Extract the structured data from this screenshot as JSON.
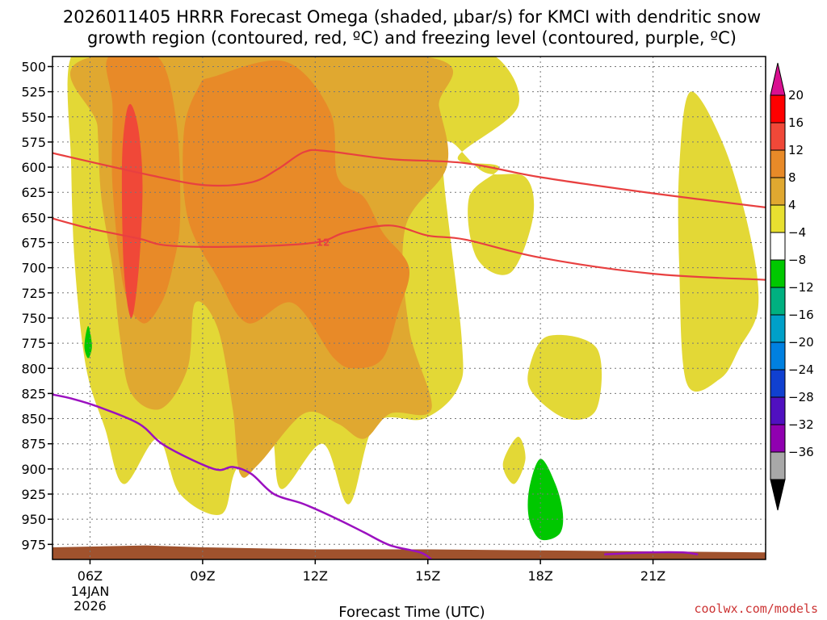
{
  "chart_data": {
    "type": "heatmap",
    "title_line1": "2026011405 HRRR Forecast Omega (shaded, μbar/s) for KMCI with dendritic snow",
    "title_line2": "growth region (contoured, red, ºC) and freezing level (contoured, purple, ºC)",
    "xlabel": "Forecast Time (UTC)",
    "credit": "coolwx.com/models",
    "x_range_hours": [
      5,
      24
    ],
    "y_range_mb": [
      490,
      990
    ],
    "y_ticks": [
      "500",
      "525",
      "550",
      "575",
      "600",
      "625",
      "650",
      "675",
      "700",
      "725",
      "750",
      "775",
      "800",
      "825",
      "850",
      "875",
      "900",
      "925",
      "950",
      "975"
    ],
    "x_ticks": [
      {
        "label": "06Z",
        "hour": 6,
        "sub": [
          "14JAN",
          "2026"
        ]
      },
      {
        "label": "09Z",
        "hour": 9,
        "sub": []
      },
      {
        "label": "12Z",
        "hour": 12,
        "sub": []
      },
      {
        "label": "15Z",
        "hour": 15,
        "sub": []
      },
      {
        "label": "18Z",
        "hour": 18,
        "sub": []
      },
      {
        "label": "21Z",
        "hour": 21,
        "sub": []
      }
    ],
    "colorbar": {
      "labels": [
        "20",
        "16",
        "12",
        "8",
        "4",
        "−4",
        "−8",
        "−12",
        "−16",
        "−20",
        "−24",
        "−28",
        "−32",
        "−36"
      ],
      "colors": [
        "#e8e030",
        "#e0a830",
        "#e88a28",
        "#f04838",
        "#ff0000",
        "#d91090",
        "#ffffff",
        "#00c800",
        "#00b080",
        "#00a0c8",
        "#0080e0",
        "#1040d0",
        "#5010c0",
        "#9000b0",
        "#a8a8a8",
        "#000000"
      ]
    },
    "omega_regions": [
      {
        "name": "omega-4-8-main",
        "color": "#e3d836",
        "points": [
          [
            5.5,
            490
          ],
          [
            6.8,
            490
          ],
          [
            8.2,
            490
          ],
          [
            13.9,
            490
          ],
          [
            15.4,
            490
          ],
          [
            16.8,
            490
          ],
          [
            17.4,
            540
          ],
          [
            15.8,
            590
          ],
          [
            16.9,
            600
          ],
          [
            16.1,
            630
          ],
          [
            16.3,
            690
          ],
          [
            17.2,
            705
          ],
          [
            17.8,
            650
          ],
          [
            17.6,
            610
          ],
          [
            16.5,
            605
          ],
          [
            15.6,
            575
          ],
          [
            15.4,
            600
          ],
          [
            15.9,
            770
          ],
          [
            15.8,
            820
          ],
          [
            14.9,
            850
          ],
          [
            13.6,
            855
          ],
          [
            12.9,
            935
          ],
          [
            12.2,
            875
          ],
          [
            11.1,
            920
          ],
          [
            10.8,
            865
          ],
          [
            9.9,
            900
          ],
          [
            9.5,
            945
          ],
          [
            8.4,
            925
          ],
          [
            7.8,
            870
          ],
          [
            6.9,
            915
          ],
          [
            6.4,
            860
          ],
          [
            5.9,
            800
          ],
          [
            5.6,
            700
          ],
          [
            5.5,
            600
          ]
        ]
      },
      {
        "name": "omega-4-8-east",
        "color": "#e3d836",
        "points": [
          [
            22.0,
            525
          ],
          [
            22.9,
            580
          ],
          [
            23.6,
            670
          ],
          [
            23.8,
            740
          ],
          [
            23.3,
            780
          ],
          [
            22.8,
            810
          ],
          [
            21.9,
            815
          ],
          [
            21.7,
            700
          ],
          [
            21.7,
            600
          ]
        ]
      },
      {
        "name": "omega-4-8-small-a",
        "color": "#e3d836",
        "points": [
          [
            17.4,
            868
          ],
          [
            17.6,
            890
          ],
          [
            17.3,
            915
          ],
          [
            17.0,
            895
          ]
        ]
      },
      {
        "name": "omega-4-8-small-b",
        "color": "#e3d836",
        "points": [
          [
            18.2,
            768
          ],
          [
            19.5,
            780
          ],
          [
            19.5,
            840
          ],
          [
            18.7,
            850
          ],
          [
            17.8,
            825
          ],
          [
            17.7,
            800
          ]
        ]
      },
      {
        "name": "omega-8-12",
        "color": "#e0a830",
        "points": [
          [
            6.1,
            490
          ],
          [
            14.9,
            490
          ],
          [
            15.3,
            540
          ],
          [
            15.5,
            600
          ],
          [
            14.4,
            660
          ],
          [
            14.5,
            760
          ],
          [
            15.1,
            840
          ],
          [
            14.0,
            845
          ],
          [
            13.3,
            870
          ],
          [
            12.6,
            855
          ],
          [
            11.7,
            845
          ],
          [
            10.5,
            895
          ],
          [
            10.0,
            905
          ],
          [
            9.8,
            840
          ],
          [
            9.4,
            760
          ],
          [
            8.8,
            735
          ],
          [
            8.6,
            800
          ],
          [
            7.9,
            840
          ],
          [
            7.1,
            825
          ],
          [
            6.8,
            770
          ],
          [
            6.6,
            700
          ],
          [
            6.3,
            630
          ],
          [
            6.2,
            560
          ]
        ]
      },
      {
        "name": "omega-12-16-a",
        "color": "#e88a28",
        "points": [
          [
            6.5,
            490
          ],
          [
            7.8,
            490
          ],
          [
            8.3,
            555
          ],
          [
            8.4,
            650
          ],
          [
            8.2,
            700
          ],
          [
            7.9,
            735
          ],
          [
            7.4,
            755
          ],
          [
            6.9,
            720
          ],
          [
            6.6,
            620
          ],
          [
            6.6,
            540
          ]
        ]
      },
      {
        "name": "omega-12-16-b",
        "color": "#e88a28",
        "points": [
          [
            9.3,
            510
          ],
          [
            11.2,
            495
          ],
          [
            12.4,
            545
          ],
          [
            12.6,
            610
          ],
          [
            13.3,
            630
          ],
          [
            13.8,
            665
          ],
          [
            14.5,
            700
          ],
          [
            14.2,
            745
          ],
          [
            13.8,
            790
          ],
          [
            13.1,
            800
          ],
          [
            12.5,
            790
          ],
          [
            11.4,
            735
          ],
          [
            10.2,
            755
          ],
          [
            9.4,
            710
          ],
          [
            8.6,
            650
          ],
          [
            8.5,
            565
          ],
          [
            8.9,
            520
          ]
        ]
      },
      {
        "name": "omega-16-20",
        "color": "#f04838",
        "points": [
          [
            7.1,
            538
          ],
          [
            7.3,
            565
          ],
          [
            7.4,
            620
          ],
          [
            7.3,
            700
          ],
          [
            7.1,
            750
          ],
          [
            6.9,
            700
          ],
          [
            6.85,
            600
          ],
          [
            6.95,
            550
          ]
        ]
      },
      {
        "name": "omega-neg-small",
        "color": "#00c800",
        "points": [
          [
            5.95,
            758
          ],
          [
            6.05,
            778
          ],
          [
            5.95,
            790
          ],
          [
            5.85,
            778
          ]
        ]
      },
      {
        "name": "omega-neg-18z",
        "color": "#00c800",
        "points": [
          [
            18.0,
            890
          ],
          [
            18.4,
            915
          ],
          [
            18.6,
            945
          ],
          [
            18.5,
            965
          ],
          [
            18.0,
            970
          ],
          [
            17.7,
            950
          ],
          [
            17.7,
            920
          ]
        ]
      }
    ],
    "dgz_contours": [
      {
        "name": "dgz-contour-upper",
        "label": "",
        "points": [
          [
            5,
            586
          ],
          [
            7.6,
            608
          ],
          [
            9.1,
            618
          ],
          [
            10.3,
            615
          ],
          [
            11.0,
            602
          ],
          [
            11.7,
            585
          ],
          [
            12.3,
            584
          ],
          [
            14.0,
            592
          ],
          [
            16.0,
            596
          ],
          [
            18.0,
            610
          ],
          [
            21.0,
            626
          ],
          [
            24,
            640
          ]
        ]
      },
      {
        "name": "dgz-contour-lower",
        "label": "−12",
        "points": [
          [
            5,
            651
          ],
          [
            6.0,
            661
          ],
          [
            7.3,
            671
          ],
          [
            8.1,
            678
          ],
          [
            10.0,
            679
          ],
          [
            12.0,
            675
          ],
          [
            12.8,
            665
          ],
          [
            14.0,
            658
          ],
          [
            15.0,
            668
          ],
          [
            16.0,
            672
          ],
          [
            18.0,
            690
          ],
          [
            21.0,
            706
          ],
          [
            24,
            712
          ]
        ]
      }
    ],
    "freezing_contours": [
      {
        "name": "freezing-level-main",
        "points": [
          [
            5,
            826
          ],
          [
            5.5,
            830
          ],
          [
            6.2,
            838
          ],
          [
            7.3,
            855
          ],
          [
            8.0,
            877
          ],
          [
            9.3,
            900
          ],
          [
            9.8,
            898
          ],
          [
            10.3,
            905
          ],
          [
            10.9,
            925
          ],
          [
            11.7,
            935
          ],
          [
            12.6,
            950
          ],
          [
            13.3,
            963
          ],
          [
            14.0,
            976
          ],
          [
            14.8,
            983
          ],
          [
            15.1,
            990
          ]
        ]
      },
      {
        "name": "freezing-level-east",
        "points": [
          [
            19.7,
            985
          ],
          [
            20.9,
            983
          ],
          [
            21.8,
            983
          ],
          [
            22.2,
            985
          ]
        ]
      }
    ],
    "terrain": {
      "color": "#a0522d",
      "top_mb": [
        [
          5,
          978
        ],
        [
          7.5,
          976
        ],
        [
          9,
          978
        ],
        [
          12,
          980
        ],
        [
          15,
          980
        ],
        [
          18,
          981
        ],
        [
          21,
          982
        ],
        [
          24,
          983
        ]
      ]
    }
  }
}
